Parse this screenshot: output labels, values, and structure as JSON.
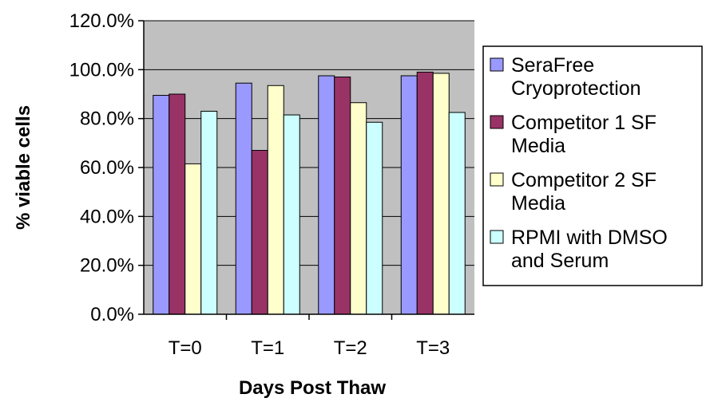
{
  "chart_data": {
    "type": "bar",
    "title": "",
    "xlabel": "Days Post Thaw",
    "ylabel": "% viable cells",
    "ylim": [
      0,
      120
    ],
    "yticks": [
      0,
      20,
      40,
      60,
      80,
      100,
      120
    ],
    "ytick_labels": [
      "0.0%",
      "20.0%",
      "40.0%",
      "60.0%",
      "80.0%",
      "100.0%",
      "120.0%"
    ],
    "categories": [
      "T=0",
      "T=1",
      "T=2",
      "T=3"
    ],
    "grid": "horizontal",
    "legend_position": "right",
    "plot_background": "#c0c0c0",
    "series": [
      {
        "name": "SeraFree Cryoprotection",
        "legend_lines": [
          "SeraFree",
          "Cryoprotection"
        ],
        "color": "#9999ff",
        "values": [
          89.5,
          94.5,
          97.5,
          97.5
        ]
      },
      {
        "name": "Competitor 1 SF Media",
        "legend_lines": [
          "Competitor 1 SF",
          "Media"
        ],
        "color": "#993366",
        "values": [
          90.0,
          67.0,
          97.0,
          99.0
        ]
      },
      {
        "name": "Competitor 2 SF Media",
        "legend_lines": [
          "Competitor 2 SF",
          "Media"
        ],
        "color": "#ffffcc",
        "values": [
          61.5,
          93.5,
          86.5,
          98.5
        ]
      },
      {
        "name": "RPMI with DMSO and Serum",
        "legend_lines": [
          "RPMI with DMSO",
          "and Serum"
        ],
        "color": "#ccffff",
        "values": [
          83.0,
          81.5,
          78.5,
          82.5
        ]
      }
    ]
  }
}
